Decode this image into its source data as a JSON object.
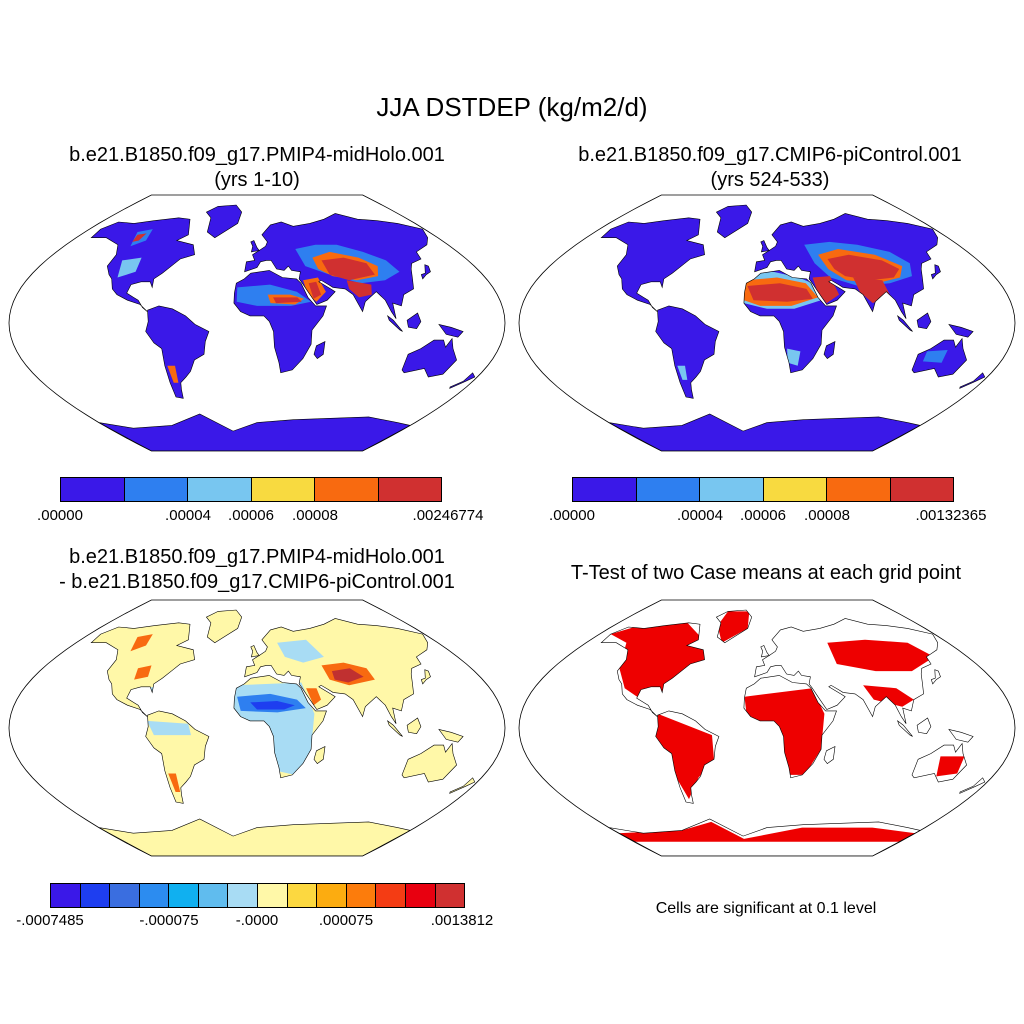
{
  "main_title": "JJA DSTDEP (kg/m2/d)",
  "colors": {
    "ocean": "#ffffff",
    "coast": "#000000",
    "significant": "#ee0000"
  },
  "panels": [
    {
      "id": "midholo",
      "title_line1": "b.e21.B1850.f09_g17.PMIP4-midHolo.001",
      "title_line2": "(yrs 1-10)",
      "colorbar": {
        "colors": [
          "#3a18e8",
          "#2e7ff0",
          "#78c6f0",
          "#f8da40",
          "#f86a10",
          "#d03030"
        ],
        "labels": [
          ".00000",
          ".00004",
          ".00006",
          ".00008",
          ".00246774"
        ]
      }
    },
    {
      "id": "picontrol",
      "title_line1": "b.e21.B1850.f09_g17.CMIP6-piControl.001",
      "title_line2": "(yrs 524-533)",
      "colorbar": {
        "colors": [
          "#3a18e8",
          "#2e7ff0",
          "#78c6f0",
          "#f8da40",
          "#f86a10",
          "#d03030"
        ],
        "labels": [
          ".00000",
          ".00004",
          ".00006",
          ".00008",
          ".00132365"
        ]
      }
    },
    {
      "id": "difference",
      "title_line1": "b.e21.B1850.f09_g17.PMIP4-midHolo.001",
      "title_line2": "- b.e21.B1850.f09_g17.CMIP6-piControl.001",
      "colorbar": {
        "colors": [
          "#3a18e8",
          "#1e3ef0",
          "#3a6ee0",
          "#2c8cf0",
          "#10b0f0",
          "#60bcee",
          "#a8dcf4",
          "#fff8a8",
          "#fcd840",
          "#fcac10",
          "#fc7c0c",
          "#f43c14",
          "#e80010",
          "#d03030"
        ],
        "labels": [
          "-.0007485",
          "-.000075",
          "-.0000",
          ".000075",
          ".0013812"
        ]
      }
    },
    {
      "id": "ttest",
      "title_line1": "T-Test of two Case means at each grid point",
      "note": "Cells are significant at 0.1 level"
    }
  ]
}
